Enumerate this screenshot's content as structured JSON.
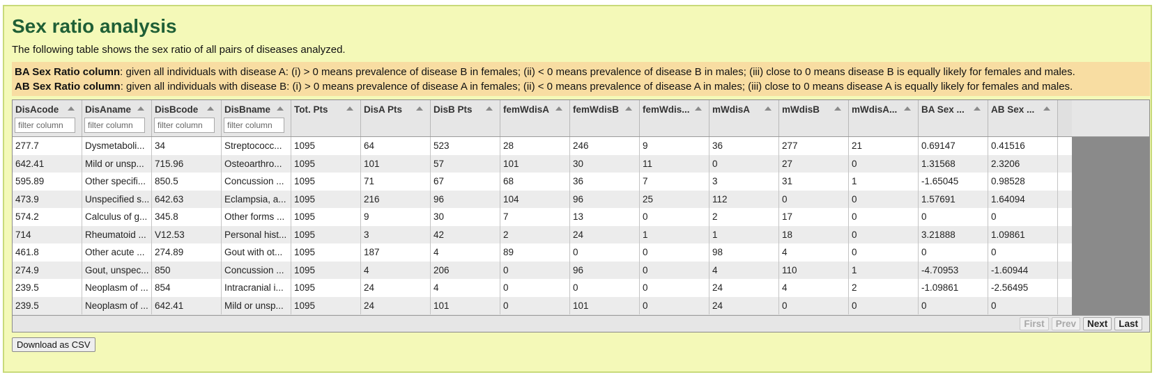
{
  "page": {
    "title": "Sex ratio analysis",
    "subtitle": "The following table shows the sex ratio of all pairs of diseases analyzed."
  },
  "notes": [
    {
      "label": "BA Sex Ratio column",
      "text": ": given all individuals with disease A: (i) > 0 means prevalence of disease B in females; (ii) < 0 means prevalence of disease B in males; (iii) close to 0 means disease B is equally likely for females and males."
    },
    {
      "label": "AB Sex Ratio column",
      "text": ": given all individuals with disease B: (i) > 0 means prevalence of disease A in females; (ii) < 0 means prevalence of disease A in males; (iii) close to 0 means disease A is equally likely for females and males."
    }
  ],
  "table": {
    "columns": [
      "DisAcode",
      "DisAname",
      "DisBcode",
      "DisBname",
      "Tot. Pts",
      "DisA Pts",
      "DisB Pts",
      "femWdisA",
      "femWdisB",
      "femWdis...",
      "mWdisA",
      "mWdisB",
      "mWdisA...",
      "BA Sex ...",
      "AB Sex ..."
    ],
    "filter_placeholder": "filter column",
    "rows": [
      [
        "277.7",
        "Dysmetaboli...",
        "34",
        "Streptococc...",
        "1095",
        "64",
        "523",
        "28",
        "246",
        "9",
        "36",
        "277",
        "21",
        "0.69147",
        "0.41516"
      ],
      [
        "642.41",
        "Mild or unsp...",
        "715.96",
        "Osteoarthro...",
        "1095",
        "101",
        "57",
        "101",
        "30",
        "11",
        "0",
        "27",
        "0",
        "1.31568",
        "2.3206"
      ],
      [
        "595.89",
        "Other specifi...",
        "850.5",
        "Concussion ...",
        "1095",
        "71",
        "67",
        "68",
        "36",
        "7",
        "3",
        "31",
        "1",
        "-1.65045",
        "0.98528"
      ],
      [
        "473.9",
        "Unspecified s...",
        "642.63",
        "Eclampsia, a...",
        "1095",
        "216",
        "96",
        "104",
        "96",
        "25",
        "112",
        "0",
        "0",
        "1.57691",
        "1.64094"
      ],
      [
        "574.2",
        "Calculus of g...",
        "345.8",
        "Other forms ...",
        "1095",
        "9",
        "30",
        "7",
        "13",
        "0",
        "2",
        "17",
        "0",
        "0",
        "0"
      ],
      [
        "714",
        "Rheumatoid ...",
        "V12.53",
        "Personal hist...",
        "1095",
        "3",
        "42",
        "2",
        "24",
        "1",
        "1",
        "18",
        "0",
        "3.21888",
        "1.09861"
      ],
      [
        "461.8",
        "Other acute ...",
        "274.89",
        "Gout with ot...",
        "1095",
        "187",
        "4",
        "89",
        "0",
        "0",
        "98",
        "4",
        "0",
        "0",
        "0"
      ],
      [
        "274.9",
        "Gout, unspec...",
        "850",
        "Concussion ...",
        "1095",
        "4",
        "206",
        "0",
        "96",
        "0",
        "4",
        "110",
        "1",
        "-4.70953",
        "-1.60944"
      ],
      [
        "239.5",
        "Neoplasm of ...",
        "854",
        "Intracranial i...",
        "1095",
        "24",
        "4",
        "0",
        "0",
        "0",
        "24",
        "4",
        "2",
        "-1.09861",
        "-2.56495"
      ],
      [
        "239.5",
        "Neoplasm of ...",
        "642.41",
        "Mild or unsp...",
        "1095",
        "24",
        "101",
        "0",
        "101",
        "0",
        "24",
        "0",
        "0",
        "0",
        "0"
      ]
    ]
  },
  "pager": {
    "first": "First",
    "prev": "Prev",
    "next": "Next",
    "last": "Last"
  },
  "download_label": "Download as CSV"
}
